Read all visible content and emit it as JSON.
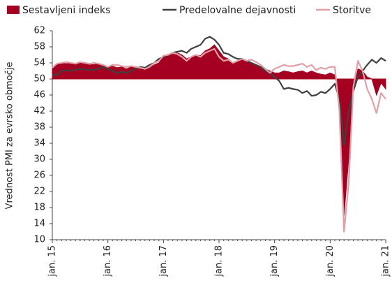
{
  "chart_data": {
    "type": "area-line",
    "ylabel": "Vrednost PMI za evrsko območje",
    "categories": [
      "jan. 15",
      null,
      null,
      null,
      null,
      null,
      null,
      null,
      null,
      null,
      null,
      null,
      "jan. 16",
      null,
      null,
      null,
      null,
      null,
      null,
      null,
      null,
      null,
      null,
      null,
      "jan. 17",
      null,
      null,
      null,
      null,
      null,
      null,
      null,
      null,
      null,
      null,
      null,
      "jan. 18",
      null,
      null,
      null,
      null,
      null,
      null,
      null,
      null,
      null,
      null,
      null,
      "jan. 19",
      null,
      null,
      null,
      null,
      null,
      null,
      null,
      null,
      null,
      null,
      null,
      "jan. 20",
      null,
      null,
      null,
      null,
      null,
      null,
      null,
      null,
      null,
      null,
      null,
      "jan. 21"
    ],
    "series": [
      {
        "name": "Sestavljeni indeks",
        "color": "#a50021",
        "kind": "area",
        "values": [
          52.5,
          53.5,
          54,
          53.8,
          54,
          53.5,
          54,
          53.8,
          53.5,
          53.6,
          53.8,
          53.5,
          53,
          53.2,
          52.8,
          53,
          52.5,
          53,
          52.8,
          52.5,
          52.4,
          52.8,
          53.5,
          54,
          55.5,
          55.8,
          56.2,
          56.5,
          56,
          55,
          55.5,
          56,
          55.8,
          57,
          57.5,
          58.5,
          57,
          55.5,
          55,
          54,
          54.5,
          55,
          54.5,
          54,
          53.5,
          53,
          52.5,
          52,
          51.5,
          51.5,
          52,
          51.8,
          51.5,
          51.8,
          52,
          51.5,
          52,
          51.5,
          51.2,
          51,
          51.5,
          51,
          44,
          16,
          30,
          47,
          52.5,
          52,
          50.5,
          50,
          46,
          49,
          47.5
        ]
      },
      {
        "name": "Predelovalne dejavnosti",
        "color": "#404040",
        "kind": "line",
        "values": [
          51,
          51,
          52,
          52.2,
          52,
          52.3,
          52.5,
          52.4,
          52.2,
          52.3,
          52.5,
          53,
          52.5,
          52,
          51.5,
          51.8,
          51.5,
          52,
          52.5,
          53,
          52.8,
          53.5,
          54,
          55,
          55.5,
          56,
          56.5,
          56.8,
          57,
          56.5,
          57.5,
          58,
          58.5,
          60,
          60.5,
          59.8,
          58.5,
          56.5,
          56.2,
          55.5,
          55,
          55,
          54.5,
          54,
          53.5,
          53,
          52,
          51.5,
          50.5,
          49.5,
          47.5,
          47.8,
          47.5,
          47.3,
          46.5,
          47,
          45.8,
          46,
          46.8,
          46.5,
          47.5,
          48.8,
          45,
          33.5,
          42,
          47,
          50.5,
          52,
          53.5,
          54.8,
          54,
          55.2,
          54.5
        ]
      },
      {
        "name": "Storitve",
        "color": "#e0a0a8",
        "kind": "line",
        "values": [
          52.8,
          53.8,
          54,
          54.2,
          54,
          53.8,
          54.2,
          54,
          53.8,
          54,
          53.8,
          53.5,
          53,
          53.5,
          53.5,
          53.2,
          53,
          53.2,
          53,
          52.8,
          52.5,
          53,
          54,
          54.5,
          55.8,
          56,
          56.5,
          56.2,
          55.5,
          54.5,
          55.5,
          56,
          55.5,
          56.5,
          57,
          57.5,
          55.5,
          54.5,
          54.8,
          54,
          54.5,
          55,
          54.5,
          54.8,
          54.2,
          53.5,
          52.5,
          51.5,
          52.5,
          53,
          53.5,
          53.2,
          53.2,
          53.5,
          53.8,
          53,
          53.5,
          52.2,
          52.8,
          52.5,
          53,
          53,
          42,
          12,
          24,
          48,
          54.5,
          52,
          47.5,
          45,
          41.5,
          46.5,
          45
        ]
      }
    ],
    "baseline": 50,
    "ylim": [
      10,
      62
    ],
    "yticks": [
      10,
      14,
      18,
      22,
      26,
      30,
      34,
      38,
      42,
      46,
      50,
      54,
      58,
      62
    ],
    "grid": false,
    "legend": "top"
  }
}
